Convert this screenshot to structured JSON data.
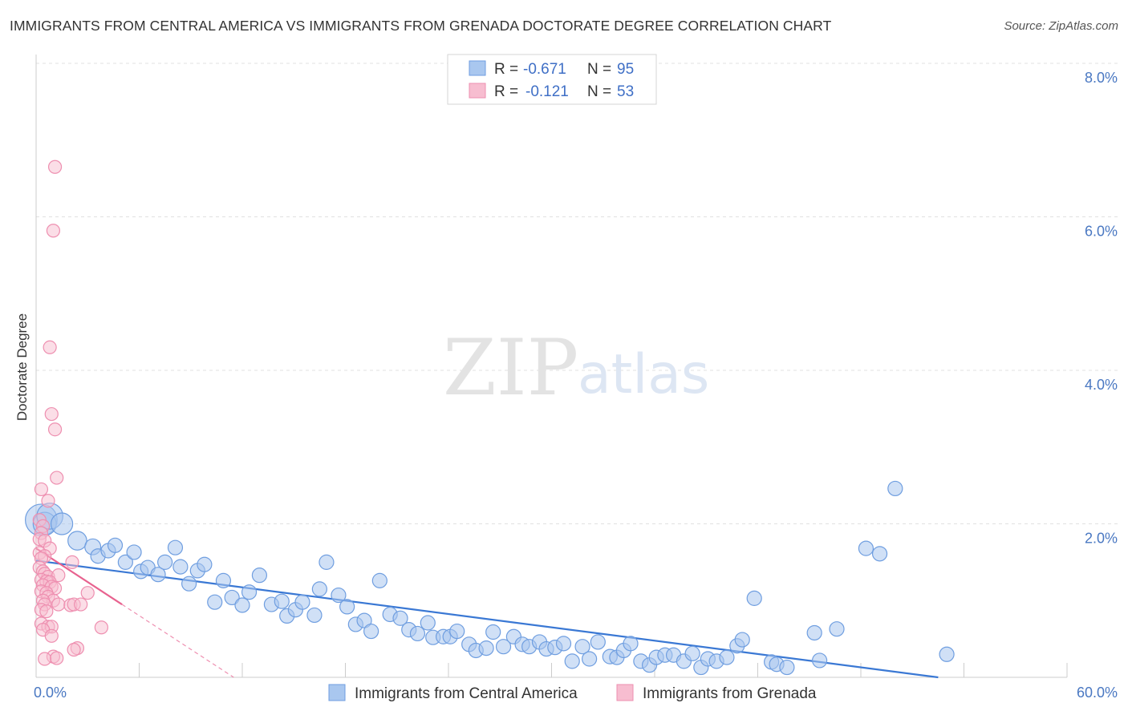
{
  "title": "IMMIGRANTS FROM CENTRAL AMERICA VS IMMIGRANTS FROM GRENADA DOCTORATE DEGREE CORRELATION CHART",
  "source": "Source: ZipAtlas.com",
  "watermark": {
    "zip": "ZIP",
    "atlas": "atlas"
  },
  "colors": {
    "blue_fill": "#a9c7ef",
    "blue_stroke": "#6f9ee0",
    "blue_line": "#3a78d4",
    "pink_fill": "#f7bdd0",
    "pink_stroke": "#ee8fb0",
    "pink_line": "#e8628f",
    "grid": "#e0e0e0",
    "tick_label": "#4a78c2"
  },
  "legend": {
    "rows": [
      {
        "r_label": "R =",
        "r_value": "-0.671",
        "n_label": "N =",
        "n_value": "95",
        "color": "blue"
      },
      {
        "r_label": "R =",
        "r_value": "-0.121",
        "n_label": "N =",
        "n_value": "53",
        "color": "pink"
      }
    ]
  },
  "chart_data": {
    "type": "scatter",
    "title": "IMMIGRANTS FROM CENTRAL AMERICA VS IMMIGRANTS FROM GRENADA DOCTORATE DEGREE CORRELATION CHART",
    "xlabel": "",
    "ylabel": "Doctorate Degree",
    "xlim": [
      0,
      60
    ],
    "ylim": [
      0,
      8
    ],
    "x_tick_labels": [
      "0.0%",
      "60.0%"
    ],
    "y_tick_values": [
      2,
      4,
      6,
      8
    ],
    "y_tick_labels": [
      "2.0%",
      "4.0%",
      "6.0%",
      "8.0%"
    ],
    "grid": true,
    "legend_position": "top-center",
    "series": [
      {
        "name": "Immigrants from Central America",
        "color": "#a9c7ef",
        "r": -0.671,
        "n": 95,
        "trend": {
          "x": [
            0,
            52.5
          ],
          "y": [
            1.52,
            0.0
          ]
        },
        "points": [
          [
            0.3,
            2.05,
            2.2
          ],
          [
            0.5,
            2.0,
            1.6
          ],
          [
            0.8,
            2.1,
            1.8
          ],
          [
            1.5,
            2.0,
            1.5
          ],
          [
            2.4,
            1.78,
            1.3
          ],
          [
            3.3,
            1.7,
            1.1
          ],
          [
            3.6,
            1.58,
            1.0
          ],
          [
            4.2,
            1.65,
            1.0
          ],
          [
            4.6,
            1.72,
            1.0
          ],
          [
            5.2,
            1.5,
            1.0
          ],
          [
            5.7,
            1.63,
            1.0
          ],
          [
            6.1,
            1.38,
            1.0
          ],
          [
            6.5,
            1.43,
            1.0
          ],
          [
            7.1,
            1.34,
            1.0
          ],
          [
            7.5,
            1.5,
            1.0
          ],
          [
            8.1,
            1.69,
            1.0
          ],
          [
            8.4,
            1.44,
            1.0
          ],
          [
            8.9,
            1.22,
            1.0
          ],
          [
            9.4,
            1.39,
            1.0
          ],
          [
            9.8,
            1.47,
            1.0
          ],
          [
            10.4,
            0.98,
            1.0
          ],
          [
            10.9,
            1.26,
            1.0
          ],
          [
            11.4,
            1.04,
            1.0
          ],
          [
            12.0,
            0.94,
            1.0
          ],
          [
            12.4,
            1.11,
            1.0
          ],
          [
            13.0,
            1.33,
            1.0
          ],
          [
            13.7,
            0.95,
            1.0
          ],
          [
            14.3,
            0.99,
            1.0
          ],
          [
            14.6,
            0.8,
            1.0
          ],
          [
            15.1,
            0.88,
            1.0
          ],
          [
            15.5,
            0.98,
            1.0
          ],
          [
            16.2,
            0.81,
            1.0
          ],
          [
            16.5,
            1.15,
            1.0
          ],
          [
            16.9,
            1.5,
            1.0
          ],
          [
            17.6,
            1.07,
            1.0
          ],
          [
            18.1,
            0.92,
            1.0
          ],
          [
            18.6,
            0.69,
            1.0
          ],
          [
            19.1,
            0.74,
            1.0
          ],
          [
            19.5,
            0.6,
            1.0
          ],
          [
            20.0,
            1.26,
            1.0
          ],
          [
            20.6,
            0.82,
            1.0
          ],
          [
            21.2,
            0.77,
            1.0
          ],
          [
            21.7,
            0.62,
            1.0
          ],
          [
            22.2,
            0.57,
            1.0
          ],
          [
            22.8,
            0.71,
            1.0
          ],
          [
            23.1,
            0.52,
            1.0
          ],
          [
            23.7,
            0.53,
            1.0
          ],
          [
            24.1,
            0.53,
            1.0
          ],
          [
            24.5,
            0.6,
            1.0
          ],
          [
            25.2,
            0.43,
            1.0
          ],
          [
            25.6,
            0.35,
            1.0
          ],
          [
            26.2,
            0.38,
            1.0
          ],
          [
            26.6,
            0.59,
            1.0
          ],
          [
            27.2,
            0.4,
            1.0
          ],
          [
            27.8,
            0.53,
            1.0
          ],
          [
            28.3,
            0.43,
            1.0
          ],
          [
            28.7,
            0.4,
            1.0
          ],
          [
            29.3,
            0.46,
            1.0
          ],
          [
            29.7,
            0.37,
            1.0
          ],
          [
            30.2,
            0.39,
            1.0
          ],
          [
            30.7,
            0.44,
            1.0
          ],
          [
            31.2,
            0.21,
            1.0
          ],
          [
            31.8,
            0.4,
            1.0
          ],
          [
            32.2,
            0.24,
            1.0
          ],
          [
            32.7,
            0.46,
            1.0
          ],
          [
            33.4,
            0.27,
            1.0
          ],
          [
            33.8,
            0.26,
            1.0
          ],
          [
            34.2,
            0.35,
            1.0
          ],
          [
            34.6,
            0.44,
            1.0
          ],
          [
            35.2,
            0.21,
            1.0
          ],
          [
            35.7,
            0.16,
            1.0
          ],
          [
            36.1,
            0.26,
            1.0
          ],
          [
            36.6,
            0.29,
            1.0
          ],
          [
            37.1,
            0.29,
            1.0
          ],
          [
            37.7,
            0.21,
            1.0
          ],
          [
            38.2,
            0.31,
            1.0
          ],
          [
            38.7,
            0.13,
            1.0
          ],
          [
            39.1,
            0.24,
            1.0
          ],
          [
            39.6,
            0.21,
            1.0
          ],
          [
            40.2,
            0.26,
            1.0
          ],
          [
            40.8,
            0.41,
            1.0
          ],
          [
            41.1,
            0.49,
            1.0
          ],
          [
            41.8,
            1.03,
            1.0
          ],
          [
            42.8,
            0.2,
            1.0
          ],
          [
            43.1,
            0.17,
            1.0
          ],
          [
            43.7,
            0.13,
            1.0
          ],
          [
            45.3,
            0.58,
            1.0
          ],
          [
            45.6,
            0.22,
            1.0
          ],
          [
            46.6,
            0.63,
            1.0
          ],
          [
            48.3,
            1.68,
            1.0
          ],
          [
            49.1,
            1.61,
            1.0
          ],
          [
            50.0,
            2.46,
            1.0
          ],
          [
            53.0,
            0.3,
            1.0
          ]
        ]
      },
      {
        "name": "Immigrants from Grenada",
        "color": "#f7bdd0",
        "r": -0.121,
        "n": 53,
        "trend": {
          "x": [
            0,
            5.0
          ],
          "y": [
            1.68,
            0.95
          ]
        },
        "trend_extension": {
          "x": [
            5.0,
            11.5
          ],
          "y": [
            0.95,
            0.0
          ]
        },
        "points": [
          [
            1.1,
            6.65
          ],
          [
            1.0,
            5.82
          ],
          [
            0.8,
            4.3
          ],
          [
            0.9,
            3.43
          ],
          [
            1.1,
            3.23
          ],
          [
            1.2,
            2.6
          ],
          [
            0.3,
            2.45
          ],
          [
            0.7,
            2.3
          ],
          [
            0.2,
            2.05
          ],
          [
            0.4,
            1.97
          ],
          [
            0.3,
            1.88
          ],
          [
            0.2,
            1.8
          ],
          [
            0.5,
            1.78
          ],
          [
            0.8,
            1.68
          ],
          [
            0.2,
            1.62
          ],
          [
            0.5,
            1.58
          ],
          [
            0.3,
            1.55
          ],
          [
            2.1,
            1.5
          ],
          [
            0.2,
            1.43
          ],
          [
            0.4,
            1.38
          ],
          [
            0.5,
            1.35
          ],
          [
            0.7,
            1.31
          ],
          [
            1.3,
            1.33
          ],
          [
            0.3,
            1.27
          ],
          [
            0.6,
            1.25
          ],
          [
            0.8,
            1.24
          ],
          [
            0.4,
            1.2
          ],
          [
            0.9,
            1.18
          ],
          [
            1.1,
            1.16
          ],
          [
            0.3,
            1.12
          ],
          [
            0.6,
            1.1
          ],
          [
            3.0,
            1.1
          ],
          [
            0.7,
            1.05
          ],
          [
            1.0,
            1.0
          ],
          [
            0.4,
            1.0
          ],
          [
            0.5,
            0.95
          ],
          [
            1.3,
            0.95
          ],
          [
            2.0,
            0.94
          ],
          [
            2.2,
            0.95
          ],
          [
            2.6,
            0.95
          ],
          [
            0.3,
            0.88
          ],
          [
            0.6,
            0.86
          ],
          [
            0.3,
            0.7
          ],
          [
            0.7,
            0.66
          ],
          [
            0.9,
            0.66
          ],
          [
            0.4,
            0.62
          ],
          [
            3.8,
            0.65
          ],
          [
            0.9,
            0.54
          ],
          [
            2.4,
            0.38
          ],
          [
            2.2,
            0.36
          ],
          [
            1.0,
            0.27
          ],
          [
            0.5,
            0.24
          ],
          [
            1.2,
            0.25
          ]
        ]
      }
    ]
  }
}
